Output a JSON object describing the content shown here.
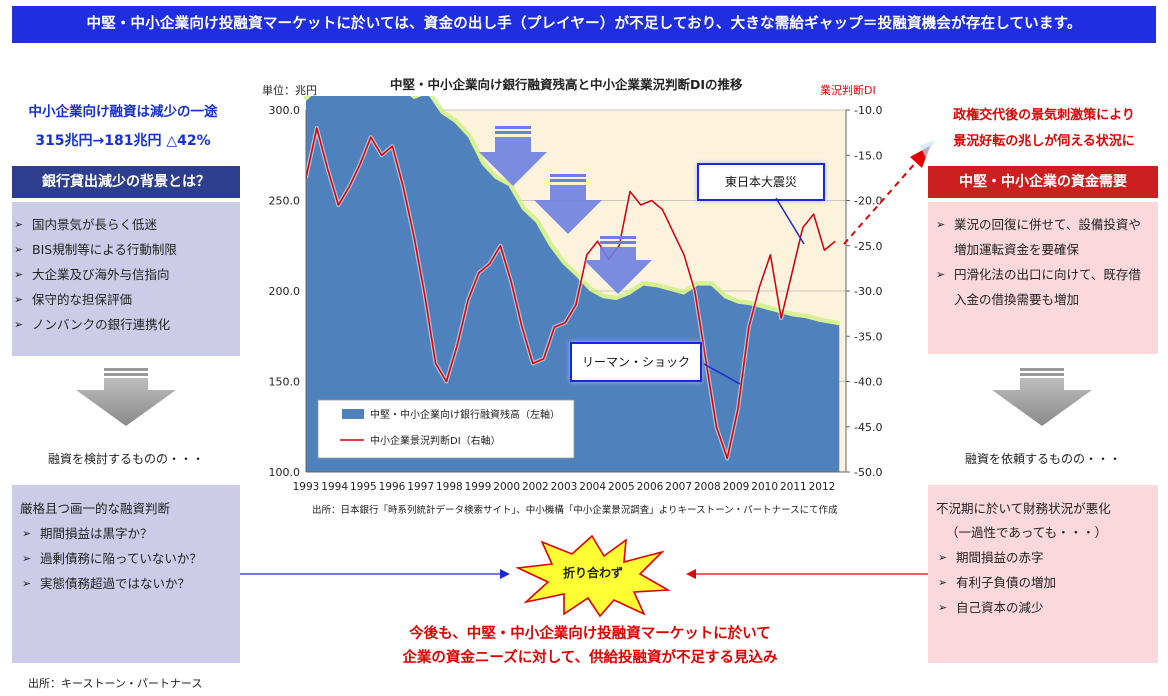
{
  "banner": "中堅・中小企業向け投融資マーケットに於いては、資金の出し手（プレイヤー）が不足しており、大きな需給ギャップ＝投融資機会が存在しています。",
  "left": {
    "headline1": "中小企業向け融資は減少の一途",
    "headline2": "315兆円→181兆円 △42%",
    "reason_title": "銀行貸出減少の背景とは？",
    "reasons": [
      "国内景気が長らく低迷",
      "BIS規制等による行動制限",
      "大企業及び海外与信指向",
      "保守的な担保評価",
      "ノンバンクの銀行連携化"
    ],
    "mid_text": "融資を検討するものの・・・",
    "criteria_title": "厳格且つ画一的な融資判断",
    "criteria": [
      "期間損益は黒字か？",
      "過剰債務に陥っていないか？",
      "実態債務超過ではないか？"
    ],
    "source": "出所：キーストーン・パートナース"
  },
  "right": {
    "headline1": "政権交代後の景気刺激策により",
    "headline2": "景況好転の兆しが伺える状況に",
    "demand_title": "中堅・中小企業の資金需要",
    "demand_items": [
      "業況の回復に併せて、設備投資や増加運転資金を要確保",
      "円滑化法の出口に向けて、既存借入金の借換需要も増加"
    ],
    "mid_text": "融資を依頼するものの・・・",
    "condition_title": "不況期に於いて財務状況が悪化",
    "condition_sub": "（一過性であっても・・・）",
    "conditions": [
      "期間損益の赤字",
      "有利子負債の増加",
      "自己資本の減少"
    ]
  },
  "center": {
    "burst_label": "折り合わず",
    "conclusion1": "今後も、中堅・中小企業向け投融資マーケットに於いて",
    "conclusion2": "企業の資金ニーズに対して、供給投融資が不足する見込み"
  },
  "chart_data": {
    "type": "area+line",
    "title": "中堅・中小企業向け銀行融資残高と中小企業業況判断DIの推移",
    "ylabel_left": "単位：兆円",
    "ylabel_right": "業況判断DI",
    "source": "出所：日本銀行「時系列統計データ検索サイト」、中小機構「中小企業景況調査」よりキーストーン・パートナースにて作成",
    "x_ticks": [
      "1993",
      "1994",
      "1995",
      "1996",
      "1997",
      "1998",
      "1999",
      "2000",
      "2002",
      "2003",
      "2004",
      "2005",
      "2006",
      "2007",
      "2008",
      "2009",
      "2010",
      "2011",
      "2012"
    ],
    "y_left": {
      "min": 100,
      "max": 300,
      "ticks": [
        "100.0",
        "150.0",
        "200.0",
        "250.0",
        "300.0"
      ]
    },
    "y_right": {
      "min": -50,
      "max": -10,
      "ticks": [
        "-10.0",
        "-15.0",
        "-20.0",
        "-25.0",
        "-30.0",
        "-35.0",
        "-40.0",
        "-45.0",
        "-50.0"
      ]
    },
    "series": [
      {
        "name": "中堅・中小企業向け銀行融資残高（左軸）",
        "color": "#4f81bd",
        "type": "area",
        "x": [
          1993.0,
          1993.5,
          1994.0,
          1994.5,
          1995.0,
          1995.5,
          1996.0,
          1996.5,
          1997.0,
          1997.5,
          1998.0,
          1998.5,
          1999.0,
          1999.5,
          2000.0,
          2000.5,
          2001.0,
          2001.5,
          2002.0,
          2002.5,
          2003.0,
          2003.5,
          2004.0,
          2004.5,
          2005.0,
          2005.5,
          2006.0,
          2006.5,
          2007.0,
          2007.5,
          2008.0,
          2008.5,
          2009.0,
          2009.5,
          2010.0,
          2010.5,
          2011.0,
          2011.5,
          2012.0,
          2012.75
        ],
        "values": [
          305,
          312,
          308,
          315,
          309,
          314,
          310,
          312,
          306,
          309,
          298,
          293,
          285,
          270,
          262,
          258,
          245,
          238,
          225,
          215,
          208,
          200,
          196,
          195,
          198,
          203,
          202,
          200,
          198,
          203,
          203,
          196,
          193,
          192,
          190,
          188,
          186,
          185,
          183,
          181
        ]
      },
      {
        "name": "中小企業景況判断DI（右軸）",
        "color": "#e00000",
        "type": "line",
        "x": [
          1993.0,
          1993.4,
          1993.8,
          1994.2,
          1994.6,
          1995.0,
          1995.4,
          1995.8,
          1996.2,
          1996.6,
          1997.0,
          1997.4,
          1997.8,
          1998.2,
          1998.6,
          1999.0,
          1999.4,
          1999.8,
          2000.2,
          2000.6,
          2001.0,
          2001.4,
          2001.8,
          2002.2,
          2002.6,
          2003.0,
          2003.4,
          2003.8,
          2004.2,
          2004.6,
          2005.0,
          2005.4,
          2005.8,
          2006.2,
          2006.6,
          2007.0,
          2007.4,
          2007.8,
          2008.2,
          2008.6,
          2009.0,
          2009.4,
          2009.8,
          2010.2,
          2010.6,
          2011.0,
          2011.4,
          2011.8,
          2012.2,
          2012.6
        ],
        "values": [
          -17.5,
          -12.0,
          -16.5,
          -20.5,
          -18.5,
          -16.0,
          -13.0,
          -15.0,
          -14.0,
          -18.5,
          -24.0,
          -30.5,
          -38.0,
          -40.0,
          -36.0,
          -31.0,
          -28.0,
          -27.0,
          -25.0,
          -29.0,
          -34.0,
          -38.0,
          -37.5,
          -34.0,
          -33.5,
          -31.5,
          -26.0,
          -24.5,
          -26.5,
          -25.0,
          -19.0,
          -20.5,
          -20.0,
          -21.0,
          -23.5,
          -26.0,
          -30.0,
          -37.5,
          -45.0,
          -48.5,
          -43.0,
          -34.0,
          -29.5,
          -26.0,
          -33.0,
          -28.0,
          -23.0,
          -21.5,
          -25.5,
          -24.5
        ]
      }
    ],
    "annotations": [
      {
        "text": "東日本大震災"
      },
      {
        "text": "リーマン・ショック"
      }
    ]
  }
}
